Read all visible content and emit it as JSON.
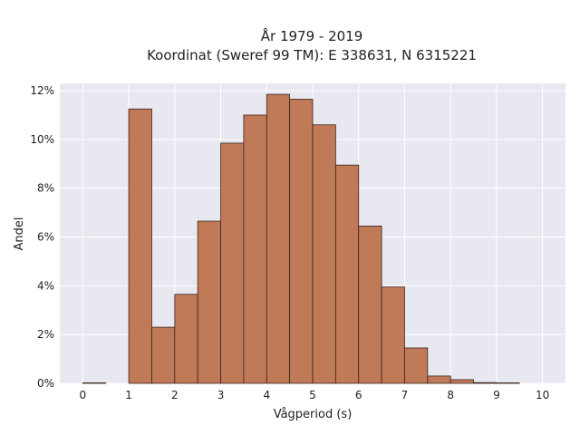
{
  "chart_data": {
    "type": "bar",
    "title": "År 1979 - 2019",
    "subtitle": "Koordinat (Sweref 99 TM): E 338631, N 6315221",
    "xlabel": "Vågperiod (s)",
    "ylabel": "Andel",
    "bin_edges": [
      0,
      0.5,
      1,
      1.5,
      2,
      2.5,
      3,
      3.5,
      4,
      4.5,
      5,
      5.5,
      6,
      6.5,
      7,
      7.5,
      8,
      8.5,
      9,
      9.5,
      10
    ],
    "values": [
      0.02,
      0,
      11.25,
      2.3,
      3.65,
      6.65,
      9.85,
      11.0,
      11.85,
      11.65,
      10.6,
      8.95,
      6.45,
      3.95,
      1.45,
      0.3,
      0.15,
      0.03,
      0.02,
      0
    ],
    "xlim": [
      -0.5,
      10.5
    ],
    "ylim": [
      0,
      12.3
    ],
    "x_ticks": [
      0,
      1,
      2,
      3,
      4,
      5,
      6,
      7,
      8,
      9,
      10
    ],
    "x_tick_labels": [
      "0",
      "1",
      "2",
      "3",
      "4",
      "5",
      "6",
      "7",
      "8",
      "9",
      "10"
    ],
    "y_ticks": [
      0,
      2,
      4,
      6,
      8,
      10,
      12
    ],
    "y_tick_labels": [
      "0%",
      "2%",
      "4%",
      "6%",
      "8%",
      "10%",
      "12%"
    ],
    "grid": true,
    "colors": {
      "bar": "#c07a58",
      "bar_edge": "#3a2418",
      "background": "#e8e8f1",
      "grid": "#ffffff"
    }
  }
}
